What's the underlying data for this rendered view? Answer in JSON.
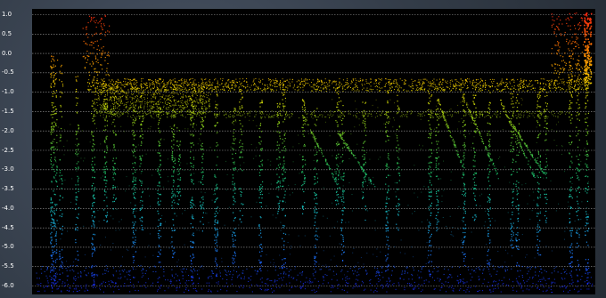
{
  "viewer": {
    "background": "#000000",
    "grid_color": "#cfcfcf",
    "colormap": [
      "#1a2cff",
      "#1e8bff",
      "#16c8c8",
      "#20c060",
      "#7acc20",
      "#f0e000",
      "#ff8a00",
      "#ff2a10"
    ]
  },
  "axis": {
    "y_min": -6.0,
    "y_max": 1.0,
    "step": 0.5,
    "tick_labels": [
      "1.0",
      "0.5",
      "0.0",
      "-0.5",
      "-1.0",
      "-1.5",
      "-2.0",
      "-2.5",
      "-3.0",
      "-3.5",
      "-4.0",
      "-4.5",
      "-5.0",
      "-5.5",
      "-6.0"
    ]
  }
}
